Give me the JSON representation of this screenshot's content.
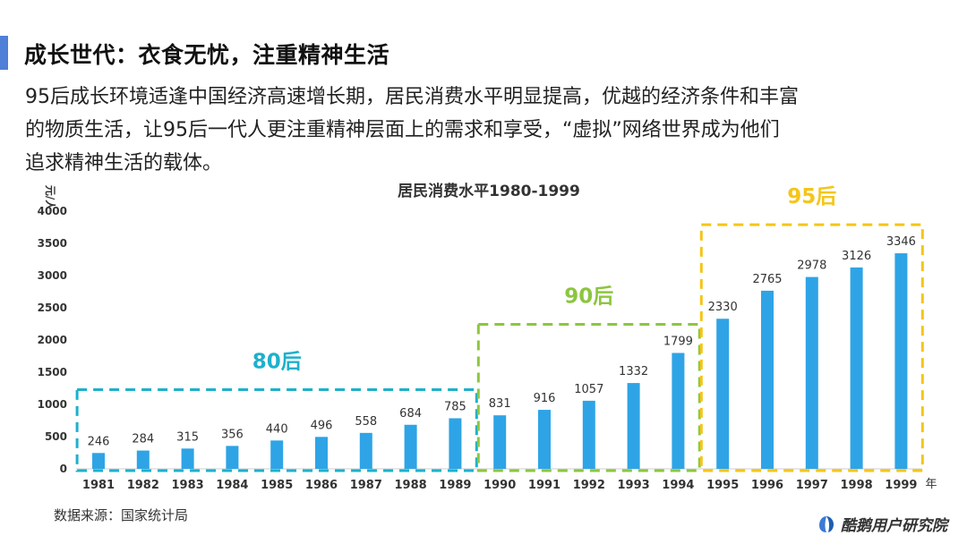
{
  "slide": {
    "heading": "成长世代：衣食无忧，注重精神生活",
    "paragraph_lines": [
      "95后成长环境适逢中国经济高速增长期，居民消费水平明显提高，优越的经济条件和丰富",
      "的物质生活，让95后一代人更注重精神层面上的需求和享受，“虚拟”网络世界成为他们",
      "追求精神生活的载体。"
    ],
    "source": "数据来源：国家统计局",
    "logo_text": "酷鹅用户研究院",
    "accent_color": "#4f7fd6"
  },
  "chart_data": {
    "type": "bar",
    "title": "居民消费水平1980-1999",
    "ylabel": "元/人",
    "xlabel": "年",
    "ylim": [
      0,
      4000
    ],
    "yticks": [
      0,
      500,
      1000,
      1500,
      2000,
      2500,
      3000,
      3500,
      4000
    ],
    "categories": [
      "1981",
      "1982",
      "1983",
      "1984",
      "1985",
      "1986",
      "1987",
      "1988",
      "1989",
      "1990",
      "1991",
      "1992",
      "1993",
      "1994",
      "1995",
      "1996",
      "1997",
      "1998",
      "1999"
    ],
    "values": [
      246,
      284,
      315,
      356,
      440,
      496,
      558,
      684,
      785,
      831,
      916,
      1057,
      1332,
      1799,
      2330,
      2765,
      2978,
      3126,
      3346
    ],
    "bar_color": "#2ea4e6",
    "grid": false,
    "groups": [
      {
        "label": "80后",
        "from": "1981",
        "to": "1989",
        "color": "#1eb0cc"
      },
      {
        "label": "90后",
        "from": "1990",
        "to": "1994",
        "color": "#8cc63f"
      },
      {
        "label": "95后",
        "from": "1995",
        "to": "1999",
        "color": "#f5c518"
      }
    ]
  }
}
